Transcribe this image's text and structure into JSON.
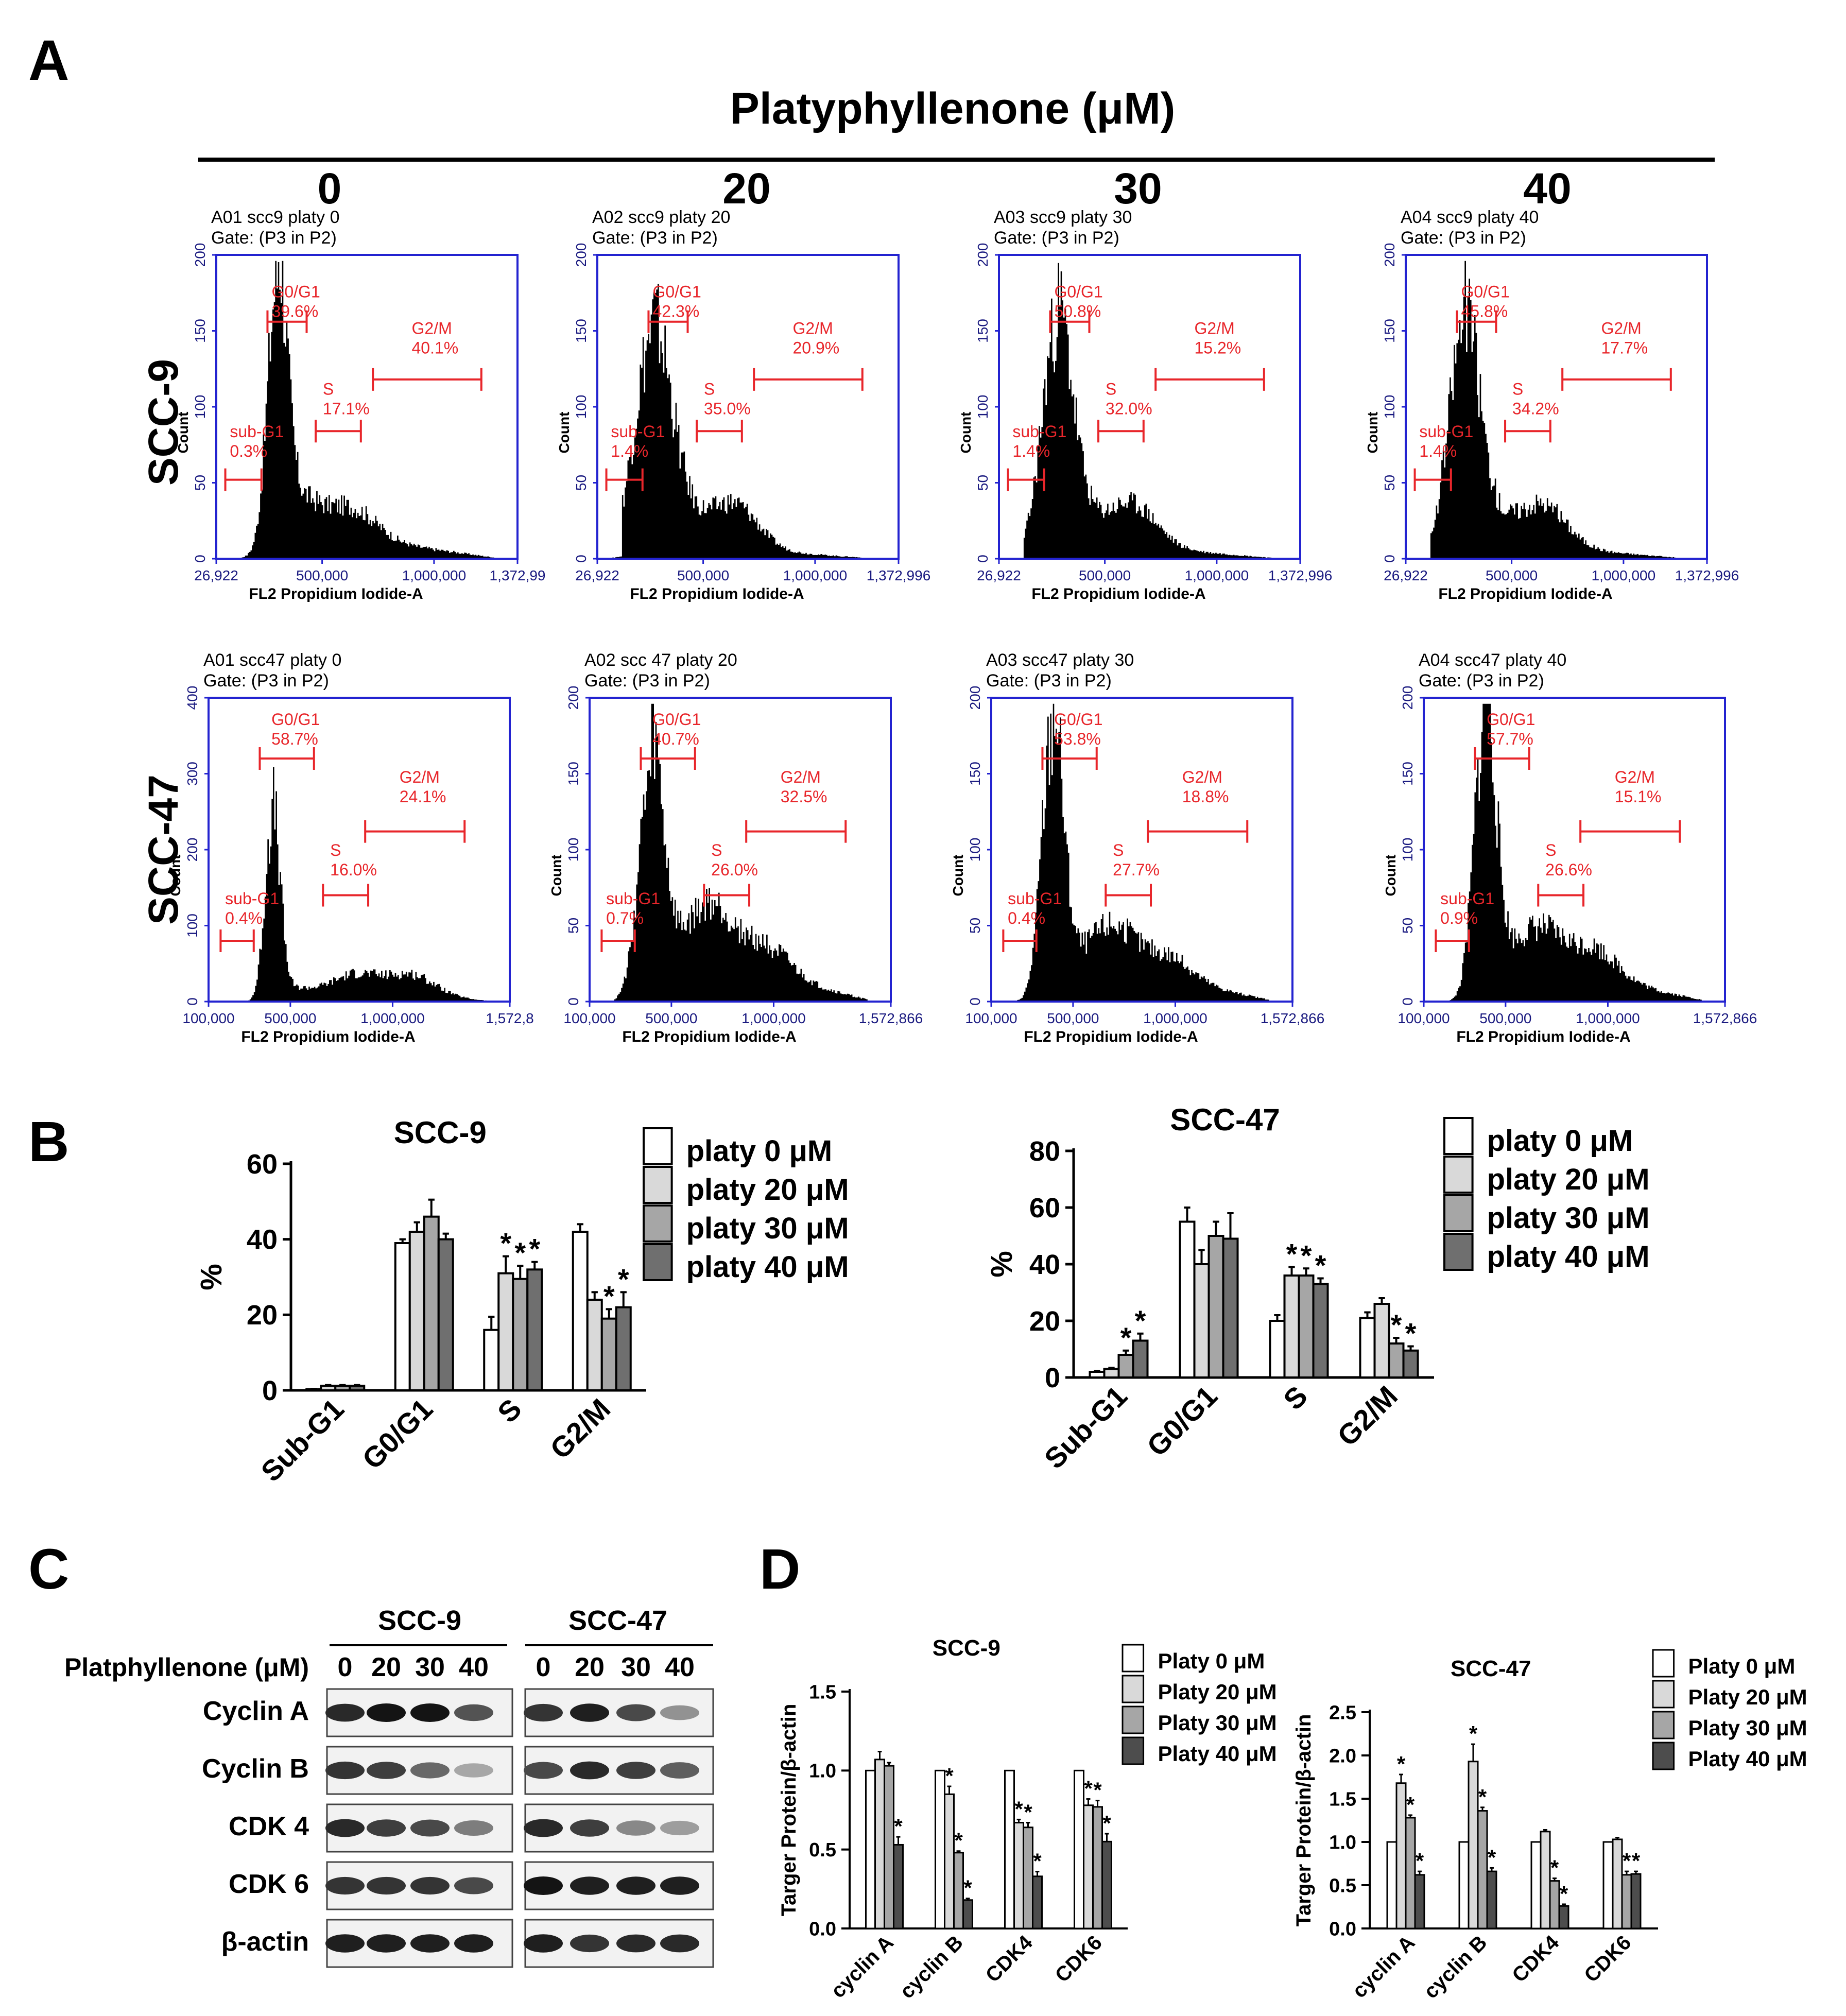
{
  "panel_labels": {
    "A": "A",
    "B": "B",
    "C": "C",
    "D": "D"
  },
  "panelA": {
    "header": "Platyphyllenone (μM)",
    "doses": [
      "0",
      "20",
      "30",
      "40"
    ],
    "row_labels": [
      "SCC-9",
      "SCC-47"
    ],
    "ylabel": "Count",
    "xlabel": "FL2 Propidium Iodide-A",
    "rows": [
      {
        "x_ticks": [
          "26,922",
          "500,000",
          "1,000,000",
          "1,372,996"
        ],
        "x_range": [
          26922,
          1372996
        ],
        "plots": [
          {
            "title": "A01 scc9 platy 0",
            "gate": "Gate: (P3 in P2)",
            "y_ticks": [
              "0",
              "50",
              "100",
              "150",
              "200"
            ],
            "y_max": 200,
            "x_ticks_override": [
              "26,922",
              "500,000",
              "1,000,000",
              "1,372,99"
            ],
            "phases": [
              {
                "name": "sub-G1",
                "pct": "0.3%"
              },
              {
                "name": "G0/G1",
                "pct": "39.6%"
              },
              {
                "name": "S",
                "pct": "17.1%"
              },
              {
                "name": "G2/M",
                "pct": "40.1%"
              }
            ]
          },
          {
            "title": "A02 scc9 platy 20",
            "gate": "Gate: (P3 in P2)",
            "y_ticks": [
              "0",
              "50",
              "100",
              "150",
              "200"
            ],
            "y_max": 200,
            "phases": [
              {
                "name": "sub-G1",
                "pct": "1.4%"
              },
              {
                "name": "G0/G1",
                "pct": "42.3%"
              },
              {
                "name": "S",
                "pct": "35.0%"
              },
              {
                "name": "G2/M",
                "pct": "20.9%"
              }
            ]
          },
          {
            "title": "A03 scc9 platy 30",
            "gate": "Gate: (P3 in P2)",
            "y_ticks": [
              "0",
              "50",
              "100",
              "150",
              "200"
            ],
            "y_max": 200,
            "phases": [
              {
                "name": "sub-G1",
                "pct": "1.4%"
              },
              {
                "name": "G0/G1",
                "pct": "50.8%"
              },
              {
                "name": "S",
                "pct": "32.0%"
              },
              {
                "name": "G2/M",
                "pct": "15.2%"
              }
            ]
          },
          {
            "title": "A04 scc9 platy 40",
            "gate": "Gate: (P3 in P2)",
            "y_ticks": [
              "0",
              "50",
              "100",
              "150",
              "200"
            ],
            "y_max": 200,
            "phases": [
              {
                "name": "sub-G1",
                "pct": "1.4%"
              },
              {
                "name": "G0/G1",
                "pct": "45.8%"
              },
              {
                "name": "S",
                "pct": "34.2%"
              },
              {
                "name": "G2/M",
                "pct": "17.7%"
              }
            ]
          }
        ]
      },
      {
        "x_ticks": [
          "100,000",
          "500,000",
          "1,000,000",
          "1,572,866"
        ],
        "x_range": [
          100000,
          1572866
        ],
        "plots": [
          {
            "title": "A01 scc47 platy 0",
            "gate": "Gate: (P3 in P2)",
            "y_ticks": [
              "0",
              "100",
              "200",
              "300",
              "400"
            ],
            "y_max": 400,
            "x_ticks_override": [
              "100,000",
              "500,000",
              "1,000,000",
              "1,572,8"
            ],
            "phases": [
              {
                "name": "sub-G1",
                "pct": "0.4%"
              },
              {
                "name": "G0/G1",
                "pct": "58.7%"
              },
              {
                "name": "S",
                "pct": "16.0%"
              },
              {
                "name": "G2/M",
                "pct": "24.1%"
              }
            ]
          },
          {
            "title": "A02 scc 47 platy 20",
            "gate": "Gate: (P3 in P2)",
            "y_ticks": [
              "0",
              "50",
              "100",
              "150",
              "200"
            ],
            "y_max": 200,
            "phases": [
              {
                "name": "sub-G1",
                "pct": "0.7%"
              },
              {
                "name": "G0/G1",
                "pct": "40.7%"
              },
              {
                "name": "S",
                "pct": "26.0%"
              },
              {
                "name": "G2/M",
                "pct": "32.5%"
              }
            ]
          },
          {
            "title": "A03 scc47 platy 30",
            "gate": "Gate: (P3 in P2)",
            "y_ticks": [
              "0",
              "50",
              "100",
              "150",
              "200"
            ],
            "y_max": 200,
            "phases": [
              {
                "name": "sub-G1",
                "pct": "0.4%"
              },
              {
                "name": "G0/G1",
                "pct": "53.8%"
              },
              {
                "name": "S",
                "pct": "27.7%"
              },
              {
                "name": "G2/M",
                "pct": "18.8%"
              }
            ]
          },
          {
            "title": "A04 scc47 platy 40",
            "gate": "Gate: (P3 in P2)",
            "y_ticks": [
              "0",
              "50",
              "100",
              "150",
              "200"
            ],
            "y_max": 200,
            "phases": [
              {
                "name": "sub-G1",
                "pct": "0.9%"
              },
              {
                "name": "G0/G1",
                "pct": "57.7%"
              },
              {
                "name": "S",
                "pct": "26.6%"
              },
              {
                "name": "G2/M",
                "pct": "15.1%"
              }
            ]
          }
        ]
      }
    ]
  },
  "panelB": {
    "legend": [
      "platy 0 μM",
      "platy 20 μM",
      "platy 30 μM",
      "platy 40 μM"
    ],
    "fills": [
      "#ffffff",
      "#d9d9d9",
      "#a6a6a6",
      "#6f6f6f"
    ]
  },
  "panelC": {
    "dose_label": "Platphyllenone (μM)",
    "groups": [
      "SCC-9",
      "SCC-47"
    ],
    "lanes": [
      "0",
      "20",
      "30",
      "40"
    ],
    "proteins": [
      "Cyclin A",
      "Cyclin B",
      "CDK 4",
      "CDK 6",
      "β-actin"
    ],
    "band_intensity": {
      "Cyclin A": [
        [
          0.9,
          1.0,
          1.0,
          0.7
        ],
        [
          0.85,
          0.95,
          0.75,
          0.4
        ]
      ],
      "Cyclin B": [
        [
          0.85,
          0.8,
          0.6,
          0.3
        ],
        [
          0.75,
          0.9,
          0.8,
          0.65
        ]
      ],
      "CDK 4": [
        [
          0.9,
          0.8,
          0.75,
          0.5
        ],
        [
          0.9,
          0.8,
          0.45,
          0.35
        ]
      ],
      "CDK 6": [
        [
          0.85,
          0.85,
          0.85,
          0.75
        ],
        [
          1.0,
          0.95,
          0.95,
          0.95
        ]
      ],
      "β-actin": [
        [
          0.95,
          0.95,
          0.95,
          0.95
        ],
        [
          0.95,
          0.85,
          0.9,
          0.9
        ]
      ]
    }
  },
  "panelD": {
    "legend": [
      "Platy 0 μM",
      "Platy 20 μM",
      "Platy 30 μM",
      "Platy 40 μM"
    ],
    "fills": [
      "#ffffff",
      "#d9d9d9",
      "#a6a6a6",
      "#4d4d4d"
    ]
  },
  "chart_data": [
    {
      "type": "bar",
      "title": "SCC-9",
      "ylabel": "%",
      "ylim": [
        0,
        60
      ],
      "yticks": [
        0,
        20,
        40,
        60
      ],
      "categories": [
        "Sub-G1",
        "G0/G1",
        "S",
        "G2/M"
      ],
      "series": [
        {
          "name": "platy 0 μM",
          "values": [
            0.3,
            39,
            16,
            42
          ],
          "errors": [
            0.1,
            1,
            3.5,
            2
          ]
        },
        {
          "name": "platy 20 μM",
          "values": [
            1.2,
            42,
            31,
            24
          ],
          "errors": [
            0.2,
            2.5,
            4.5,
            2
          ]
        },
        {
          "name": "platy 30 μM",
          "values": [
            1.2,
            46,
            29.5,
            19
          ],
          "errors": [
            0.2,
            4.5,
            3.5,
            2.5
          ]
        },
        {
          "name": "platy 40 μM",
          "values": [
            1.2,
            40,
            32,
            22
          ],
          "errors": [
            0.2,
            1.5,
            2,
            4
          ]
        }
      ],
      "significance": [
        [
          false,
          false,
          false,
          false
        ],
        [
          false,
          false,
          true,
          false
        ],
        [
          false,
          false,
          true,
          true
        ],
        [
          false,
          false,
          true,
          true
        ]
      ]
    },
    {
      "type": "bar",
      "title": "SCC-47",
      "ylabel": "%",
      "ylim": [
        0,
        80
      ],
      "yticks": [
        0,
        20,
        40,
        60,
        80
      ],
      "categories": [
        "Sub-G1",
        "G0/G1",
        "S",
        "G2/M"
      ],
      "series": [
        {
          "name": "platy 0 μM",
          "values": [
            2,
            55,
            20,
            21
          ],
          "errors": [
            0.3,
            5,
            2,
            2
          ]
        },
        {
          "name": "platy 20 μM",
          "values": [
            3,
            40,
            36,
            26
          ],
          "errors": [
            0.4,
            5,
            3,
            2
          ]
        },
        {
          "name": "platy 30 μM",
          "values": [
            8,
            50,
            36,
            12
          ],
          "errors": [
            1.5,
            5,
            2.5,
            2
          ]
        },
        {
          "name": "platy 40 μM",
          "values": [
            13,
            49,
            33,
            9.5
          ],
          "errors": [
            2.5,
            9,
            2,
            1.5
          ]
        }
      ],
      "significance": [
        [
          false,
          false,
          false,
          false
        ],
        [
          false,
          false,
          true,
          false
        ],
        [
          true,
          false,
          true,
          true
        ],
        [
          true,
          false,
          true,
          true
        ]
      ]
    },
    {
      "type": "bar",
      "title": "SCC-9",
      "ylabel": "Targer Protein/β-actin",
      "ylim": [
        0,
        1.5
      ],
      "yticks": [
        "0.0",
        "0.5",
        "1.0",
        "1.5"
      ],
      "categories": [
        "cyclin A",
        "cyclin B",
        "CDK4",
        "CDK6"
      ],
      "series": [
        {
          "name": "Platy 0 μM",
          "values": [
            1.0,
            1.0,
            1.0,
            1.0
          ],
          "errors": [
            0,
            0,
            0,
            0
          ]
        },
        {
          "name": "Platy 20 μM",
          "values": [
            1.07,
            0.85,
            0.67,
            0.78
          ],
          "errors": [
            0.05,
            0.05,
            0.02,
            0.04
          ]
        },
        {
          "name": "Platy 30 μM",
          "values": [
            1.03,
            0.48,
            0.64,
            0.77
          ],
          "errors": [
            0.02,
            0.01,
            0.03,
            0.04
          ]
        },
        {
          "name": "Platy 40 μM",
          "values": [
            0.53,
            0.18,
            0.33,
            0.55
          ],
          "errors": [
            0.05,
            0.01,
            0.03,
            0.05
          ]
        }
      ],
      "significance": [
        [
          false,
          false,
          false,
          false
        ],
        [
          false,
          true,
          true,
          true
        ],
        [
          false,
          true,
          true,
          true
        ],
        [
          true,
          true,
          true,
          true
        ]
      ]
    },
    {
      "type": "bar",
      "title": "SCC-47",
      "ylabel": "Targer Protein/β-actin",
      "ylim": [
        0,
        2.5
      ],
      "yticks": [
        "0.0",
        "0.5",
        "1.0",
        "1.5",
        "2.0",
        "2.5"
      ],
      "categories": [
        "cyclin A",
        "cyclin B",
        "CDK4",
        "CDK6"
      ],
      "series": [
        {
          "name": "Platy 0 μM",
          "values": [
            1.0,
            1.0,
            1.0,
            1.0
          ],
          "errors": [
            0,
            0,
            0,
            0
          ]
        },
        {
          "name": "Platy 20 μM",
          "values": [
            1.68,
            1.93,
            1.12,
            1.03
          ],
          "errors": [
            0.1,
            0.2,
            0.02,
            0.02
          ]
        },
        {
          "name": "Platy 30 μM",
          "values": [
            1.28,
            1.36,
            0.55,
            0.62
          ],
          "errors": [
            0.03,
            0.04,
            0.03,
            0.04
          ]
        },
        {
          "name": "Platy 40 μM",
          "values": [
            0.62,
            0.66,
            0.26,
            0.63
          ],
          "errors": [
            0.04,
            0.04,
            0.02,
            0.03
          ]
        }
      ],
      "significance": [
        [
          false,
          false,
          false,
          false
        ],
        [
          true,
          true,
          false,
          false
        ],
        [
          true,
          true,
          true,
          true
        ],
        [
          true,
          true,
          true,
          true
        ]
      ]
    }
  ]
}
